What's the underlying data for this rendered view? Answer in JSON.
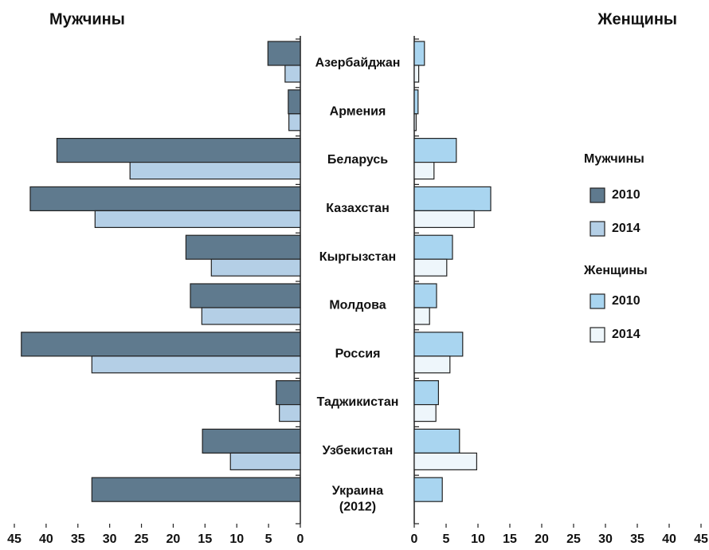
{
  "chart_data": {
    "type": "bar",
    "orientation": "horizontal",
    "categories": [
      "Азербайджан",
      "Армения",
      "Беларусь",
      "Казахстан",
      "Кыргызстан",
      "Молдова",
      "Россия",
      "Таджикистан",
      "Узбекистан",
      "Украина\n(2012)"
    ],
    "panels": [
      {
        "title": "Мужчины",
        "reversed": true,
        "xlim": [
          0,
          45
        ],
        "xticks": [
          0,
          5,
          10,
          15,
          20,
          25,
          30,
          35,
          40,
          45
        ],
        "series": [
          {
            "name": "2010",
            "color": "#5f7a8e",
            "values": [
              5.1,
              1.9,
              38.3,
              42.5,
              18.0,
              17.3,
              43.9,
              3.8,
              15.4,
              32.8
            ]
          },
          {
            "name": "2014",
            "color": "#b4cfe6",
            "values": [
              2.4,
              1.8,
              26.8,
              32.3,
              14.0,
              15.5,
              32.8,
              3.3,
              11.0,
              null
            ]
          }
        ]
      },
      {
        "title": "Женщины",
        "reversed": false,
        "xlim": [
          0,
          45
        ],
        "xticks": [
          0,
          5,
          10,
          15,
          20,
          25,
          30,
          35,
          40,
          45
        ],
        "series": [
          {
            "name": "2010",
            "color": "#a9d5f0",
            "values": [
              1.6,
              0.6,
              6.6,
              12.0,
              6.0,
              3.5,
              7.6,
              3.8,
              7.1,
              4.4
            ]
          },
          {
            "name": "2014",
            "color": "#eef6fb",
            "values": [
              0.7,
              0.3,
              3.1,
              9.4,
              5.1,
              2.4,
              5.6,
              3.4,
              9.8,
              null
            ]
          }
        ]
      }
    ]
  }
}
